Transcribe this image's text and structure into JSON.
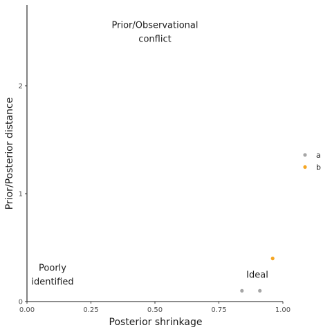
{
  "chart_data": {
    "type": "scatter",
    "title": "",
    "xlabel": "Posterior shrinkage",
    "ylabel": "Prior/Posterior distance",
    "xlim": [
      0,
      1
    ],
    "ylim": [
      0,
      2.75
    ],
    "x_ticks": [
      0,
      0.25,
      0.5,
      0.75,
      1
    ],
    "x_tick_labels": [
      "0.00",
      "0.25",
      "0.50",
      "0.75",
      "1.00"
    ],
    "y_ticks": [
      0,
      1,
      2
    ],
    "y_tick_labels": [
      "0",
      "1",
      "2"
    ],
    "grid": false,
    "legend_position": "right",
    "series": [
      {
        "name": "a",
        "color": "#a6a6a6",
        "points": [
          {
            "x": 0.84,
            "y": 0.1
          },
          {
            "x": 0.91,
            "y": 0.1
          }
        ]
      },
      {
        "name": "b",
        "color": "#f5a623",
        "points": [
          {
            "x": 0.96,
            "y": 0.4
          }
        ]
      }
    ],
    "annotations": [
      {
        "lines": [
          "Prior/Observational",
          "conflict"
        ],
        "x": 0.5,
        "y": 2.5
      },
      {
        "lines": [
          "Poorly",
          "identified"
        ],
        "x": 0.1,
        "y": 0.25
      },
      {
        "lines": [
          "Ideal"
        ],
        "x": 0.9,
        "y": 0.25
      }
    ]
  }
}
